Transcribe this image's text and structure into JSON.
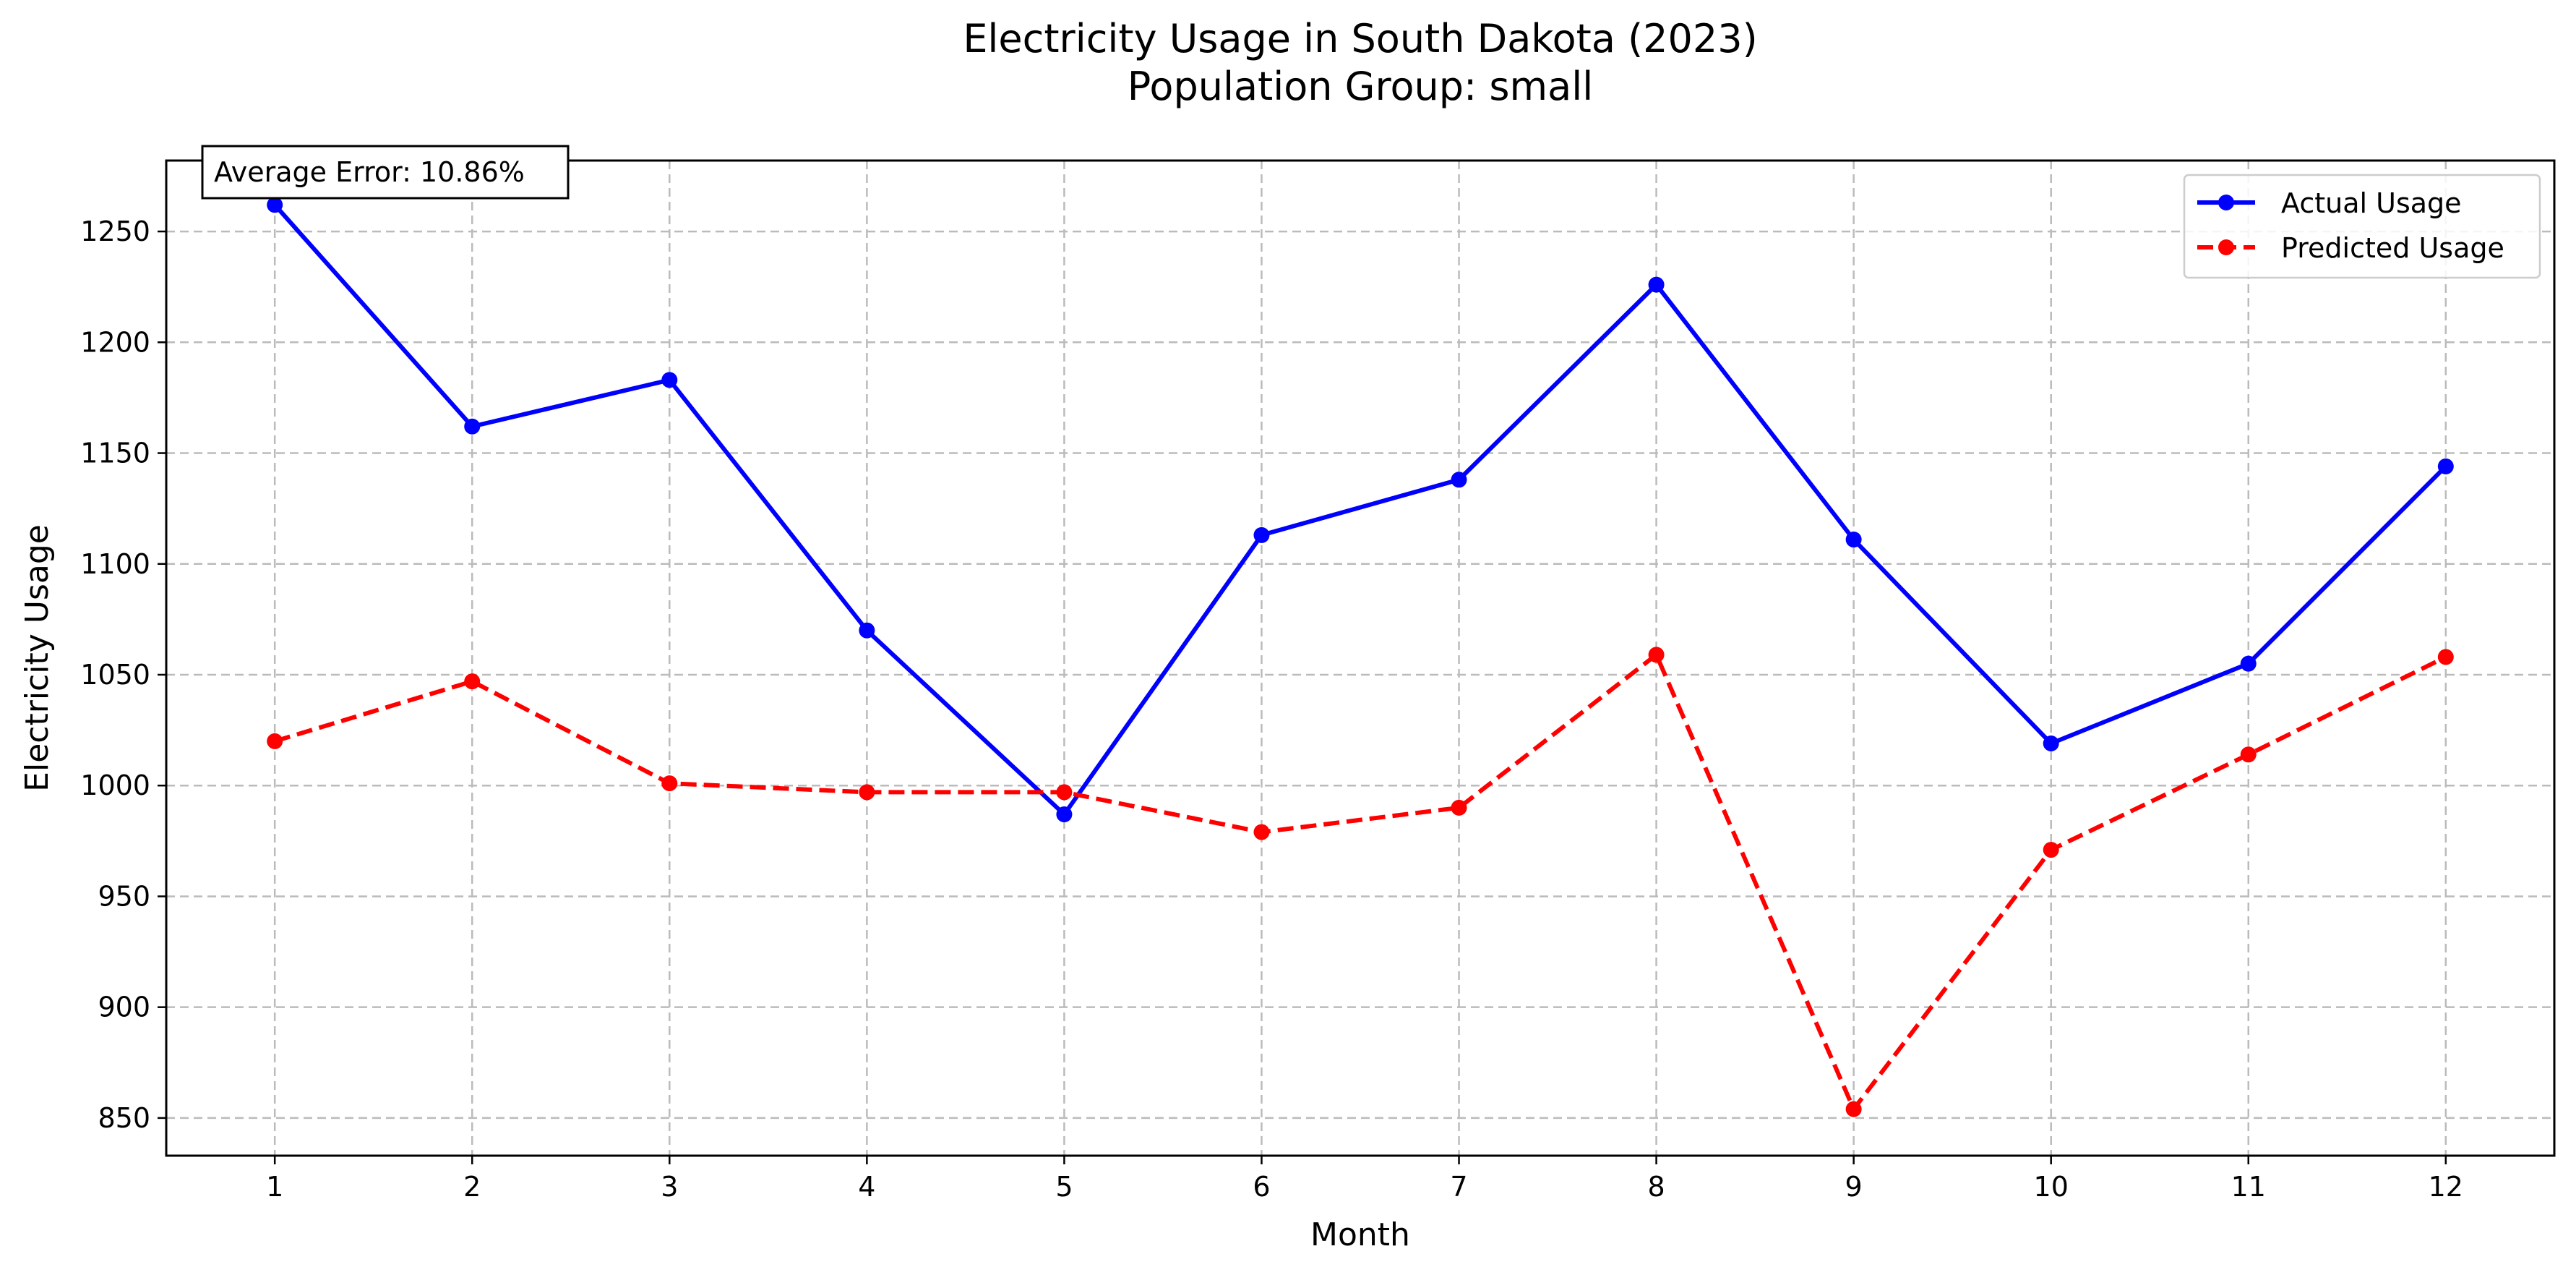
{
  "chart_data": {
    "type": "line",
    "title": [
      "Electricity Usage in South Dakota (2023)",
      "Population Group: small"
    ],
    "xlabel": "Month",
    "ylabel": "Electricity Usage",
    "x": [
      1,
      2,
      3,
      4,
      5,
      6,
      7,
      8,
      9,
      10,
      11,
      12
    ],
    "xlim": [
      0.45,
      12.55
    ],
    "ylim": [
      833,
      1282
    ],
    "yticks": [
      850,
      900,
      950,
      1000,
      1050,
      1100,
      1150,
      1200,
      1250
    ],
    "grid": true,
    "legend_position": "top-right",
    "annotation": "Average Error: 10.86%",
    "series": [
      {
        "name": "Actual Usage",
        "color": "#0000ff",
        "style": "solid",
        "marker": "circle",
        "values": [
          1262,
          1162,
          1183,
          1070,
          987,
          1113,
          1138,
          1226,
          1111,
          1019,
          1055,
          1144
        ]
      },
      {
        "name": "Predicted Usage",
        "color": "#ff0000",
        "style": "dashed",
        "marker": "circle",
        "values": [
          1020,
          1047,
          1001,
          997,
          997,
          979,
          990,
          1059,
          854,
          971,
          1014,
          1058
        ]
      }
    ]
  }
}
